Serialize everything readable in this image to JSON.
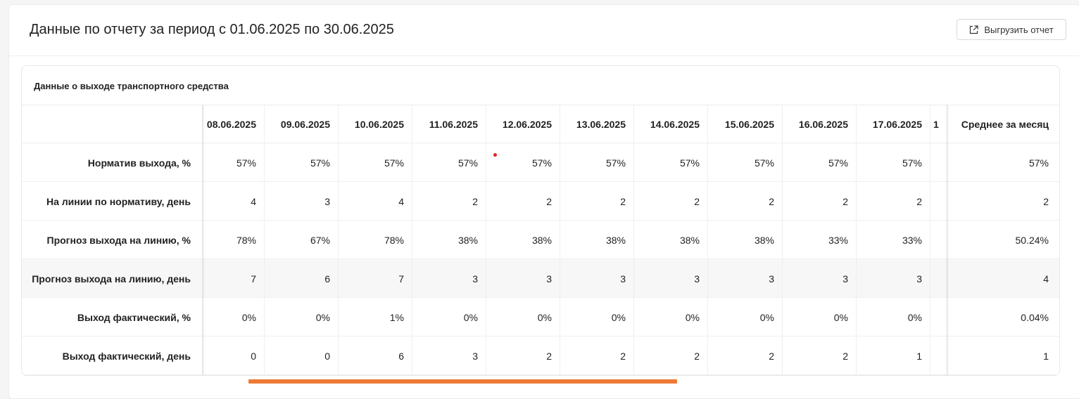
{
  "page": {
    "title": "Данные по отчету за период с 01.06.2025 по 30.06.2025",
    "export_label": "Выгрузить отчет",
    "export_icon": "external-link-icon"
  },
  "section": {
    "title": "Данные о выходе транспортного средства"
  },
  "table": {
    "columns": [
      "08.06.2025",
      "09.06.2025",
      "10.06.2025",
      "11.06.2025",
      "12.06.2025",
      "13.06.2025",
      "14.06.2025",
      "15.06.2025",
      "16.06.2025",
      "17.06.2025",
      "1"
    ],
    "avg_header": "Среднее за месяц",
    "rows": [
      {
        "label": "Норматив выхода, %",
        "values": [
          "57%",
          "57%",
          "57%",
          "57%",
          "57%",
          "57%",
          "57%",
          "57%",
          "57%",
          "57%",
          ""
        ],
        "avg": "57%"
      },
      {
        "label": "На линии по нормативу, день",
        "values": [
          "4",
          "3",
          "4",
          "2",
          "2",
          "2",
          "2",
          "2",
          "2",
          "2",
          ""
        ],
        "avg": "2"
      },
      {
        "label": "Прогноз выхода на линию, %",
        "values": [
          "78%",
          "67%",
          "78%",
          "38%",
          "38%",
          "38%",
          "38%",
          "38%",
          "33%",
          "33%",
          ""
        ],
        "avg": "50.24%"
      },
      {
        "label": "Прогноз выхода на линию, день",
        "values": [
          "7",
          "6",
          "7",
          "3",
          "3",
          "3",
          "3",
          "3",
          "3",
          "3",
          ""
        ],
        "avg": "4"
      },
      {
        "label": "Выход фактический, %",
        "values": [
          "0%",
          "0%",
          "1%",
          "0%",
          "0%",
          "0%",
          "0%",
          "0%",
          "0%",
          "0%",
          ""
        ],
        "avg": "0.04%"
      },
      {
        "label": "Выход фактический, день",
        "values": [
          "0",
          "0",
          "6",
          "3",
          "2",
          "2",
          "2",
          "2",
          "2",
          "1",
          ""
        ],
        "avg": "1"
      }
    ]
  },
  "colors": {
    "accent": "#ee7a35",
    "marker": "#e02020"
  }
}
